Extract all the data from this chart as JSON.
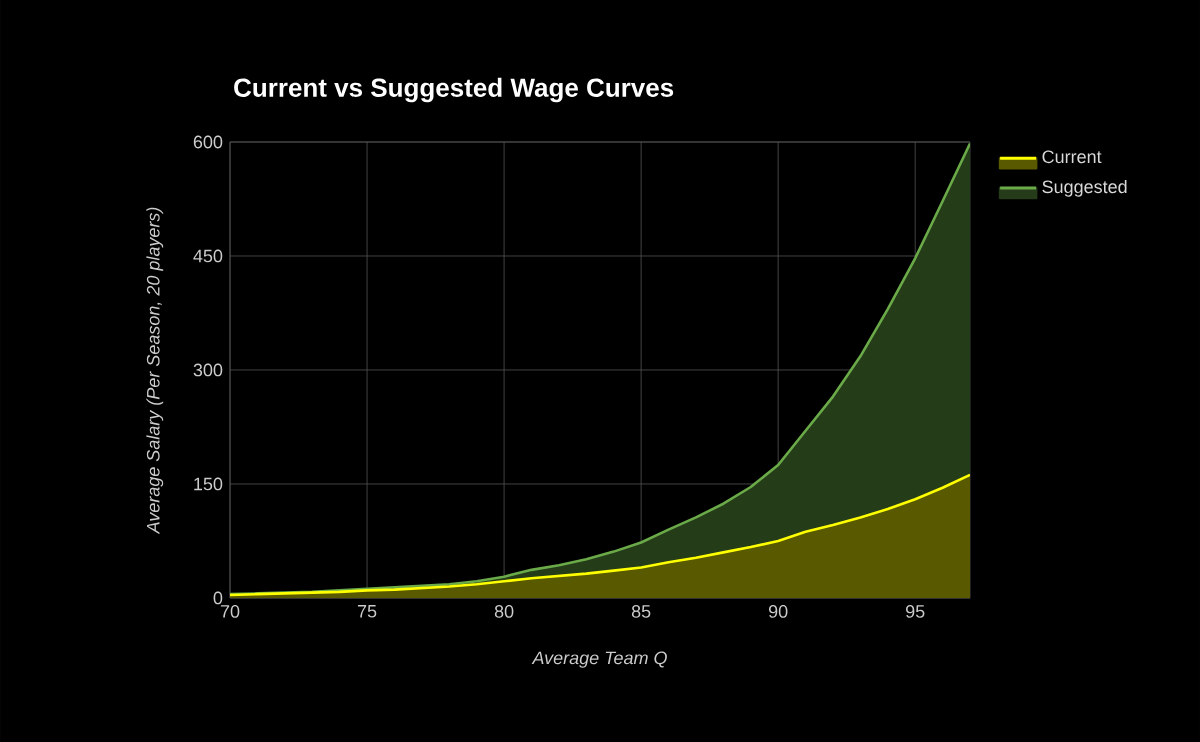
{
  "chart_data": {
    "type": "area",
    "title": "Current vs Suggested Wage Curves",
    "xlabel": "Average Team Q",
    "ylabel": "Average Salary (Per Season, 20 players)",
    "x": [
      70,
      71,
      72,
      73,
      74,
      75,
      76,
      77,
      78,
      79,
      80,
      81,
      82,
      83,
      84,
      85,
      86,
      87,
      88,
      89,
      90,
      91,
      92,
      93,
      94,
      95,
      96,
      97
    ],
    "series": [
      {
        "name": "Current",
        "color": "#ffff00",
        "values": [
          4,
          5,
          6,
          7,
          8,
          10,
          11,
          13,
          15,
          18,
          22,
          26,
          29,
          32,
          36,
          40,
          47,
          53,
          60,
          67,
          75,
          87,
          96,
          106,
          117,
          130,
          145,
          162
        ]
      },
      {
        "name": "Suggested",
        "color": "#6aaa48",
        "values": [
          5,
          6,
          7,
          8,
          10,
          12,
          14,
          16,
          18,
          22,
          28,
          37,
          43,
          51,
          61,
          73,
          90,
          106,
          124,
          146,
          175,
          220,
          265,
          318,
          380,
          447,
          522,
          598
        ]
      }
    ],
    "xlim": [
      70,
      97
    ],
    "xticks": [
      70,
      75,
      80,
      85,
      90,
      95
    ],
    "ylim": [
      0,
      600
    ],
    "yticks": [
      0,
      150,
      300,
      450,
      600
    ],
    "grid": true,
    "legend": "top right"
  }
}
